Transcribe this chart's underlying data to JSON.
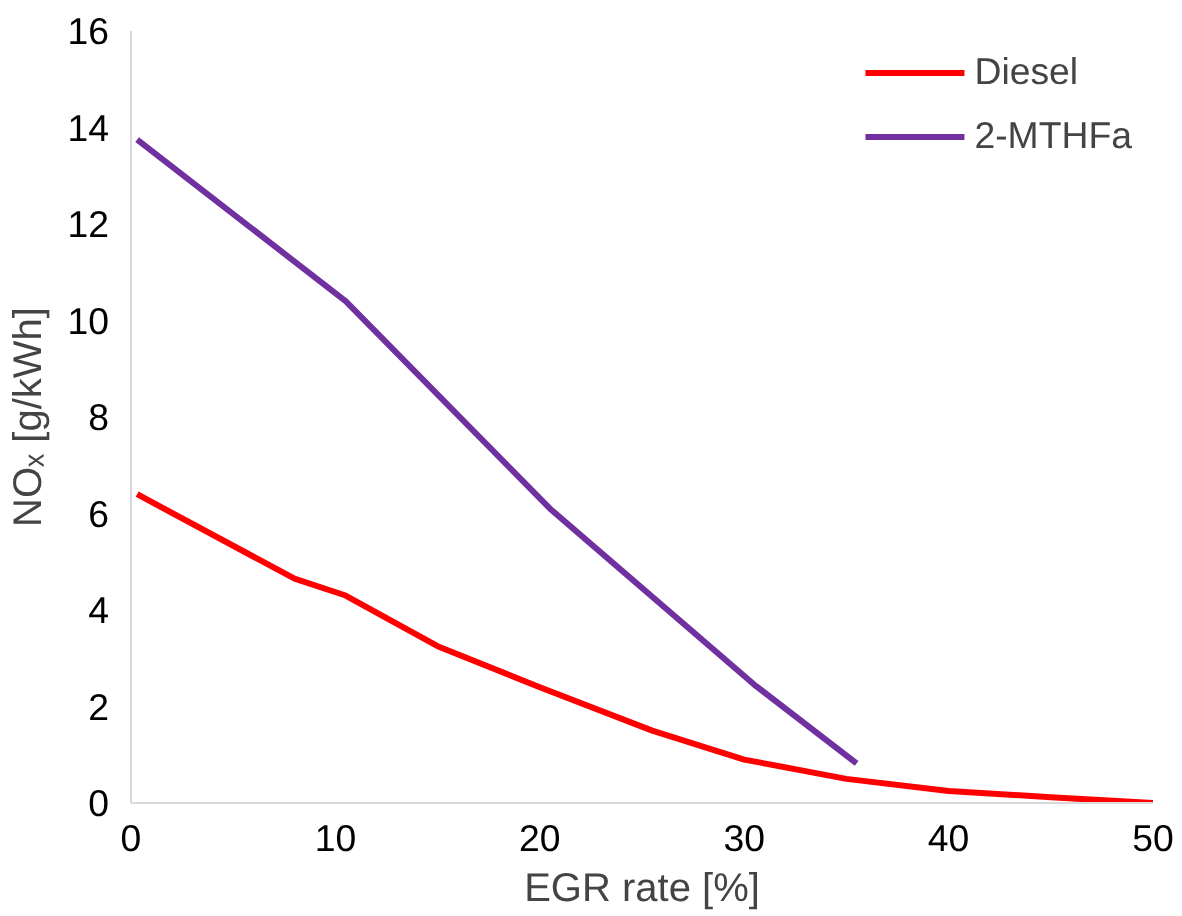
{
  "chart_data": {
    "type": "line",
    "xlabel": "EGR rate [%]",
    "ylabel": "NOₓ [g/kWh]",
    "xlim": [
      0,
      50
    ],
    "xticks": [
      0,
      10,
      20,
      30,
      40,
      50
    ],
    "ylim": [
      0,
      16
    ],
    "yticks": [
      0,
      2,
      4,
      6,
      8,
      10,
      12,
      14,
      16
    ],
    "grid": false,
    "legend": "top right",
    "series": [
      {
        "name": "Diesel",
        "color": "#ff0000",
        "x": [
          0.3,
          8,
          10.5,
          15,
          20,
          25.5,
          30,
          35,
          40,
          45,
          50
        ],
        "values": [
          6.4,
          4.65,
          4.3,
          3.25,
          2.4,
          1.5,
          0.9,
          0.5,
          0.25,
          0.12,
          0
        ]
      },
      {
        "name": "2-MTHFa",
        "color": "#7030a0",
        "x": [
          0.3,
          10.5,
          20.5,
          30.5,
          35.5
        ],
        "values": [
          13.75,
          10.4,
          6.1,
          2.45,
          0.82
        ]
      }
    ]
  }
}
